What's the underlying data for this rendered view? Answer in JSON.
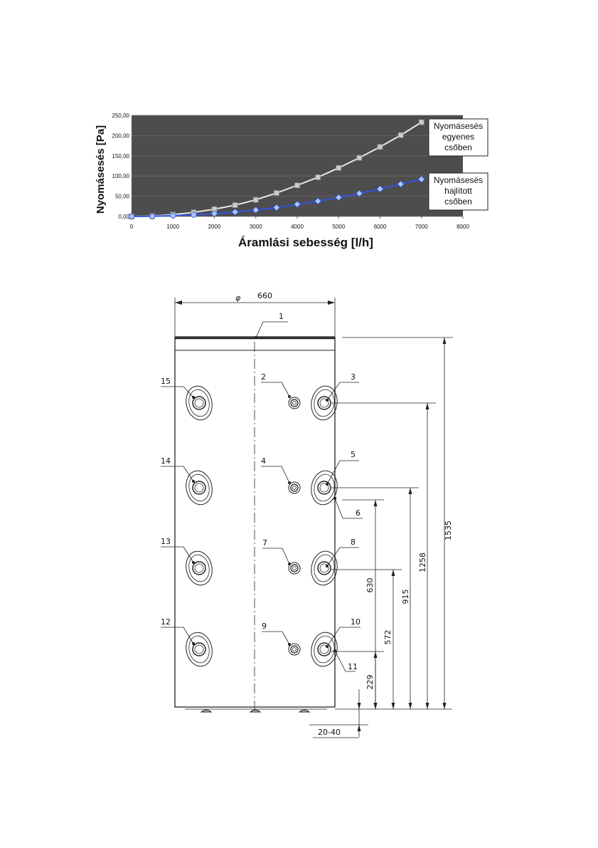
{
  "chart_data": {
    "type": "line",
    "title": "",
    "xlabel": "Áramlási sebesség [l/h]",
    "ylabel": "Nyomásesés [Pa]",
    "xlim": [
      0,
      8000
    ],
    "ylim": [
      0,
      250
    ],
    "x_ticks": [
      "0",
      "1000",
      "2000",
      "3000",
      "4000",
      "5000",
      "6000",
      "7000",
      "8000"
    ],
    "y_ticks": [
      "0,00",
      "50,00",
      "100,00",
      "150,00",
      "200,00",
      "250,00"
    ],
    "grid": true,
    "legend": "right",
    "background_color": "#4d4d4d",
    "series": [
      {
        "name": "Nyomásesés egyenes csőben",
        "label_lines": [
          "Nyomásesés",
          "egyenes",
          "csőben"
        ],
        "color": "#e6e6e6",
        "marker": "square",
        "x": [
          0,
          500,
          1000,
          1500,
          2000,
          2500,
          3000,
          3500,
          4000,
          4500,
          5000,
          5500,
          6000,
          6500,
          7000
        ],
        "y": [
          0,
          1,
          4.5,
          10,
          18,
          28,
          41,
          58,
          77,
          97,
          120,
          145,
          172,
          201,
          233
        ]
      },
      {
        "name": "Nyomásesés hajlított csőben",
        "label_lines": [
          "Nyomásesés",
          "hajlított",
          "csőben"
        ],
        "color": "#3355dd",
        "marker": "diamond",
        "x": [
          0,
          500,
          1000,
          1500,
          2000,
          2500,
          3000,
          3500,
          4000,
          4500,
          5000,
          5500,
          6000,
          6500,
          7000
        ],
        "y": [
          0,
          0.5,
          2,
          4,
          7,
          11,
          16,
          22,
          30,
          38,
          47,
          57,
          68,
          80,
          92
        ]
      }
    ]
  },
  "drawing": {
    "diameter_symbol": "φ",
    "diameter_value": "660",
    "callouts": [
      "1",
      "2",
      "3",
      "4",
      "5",
      "6",
      "7",
      "8",
      "9",
      "10",
      "11",
      "12",
      "13",
      "14",
      "15"
    ],
    "dimensions": [
      "1535",
      "1258",
      "915",
      "630",
      "572",
      "229",
      "20-40"
    ]
  }
}
